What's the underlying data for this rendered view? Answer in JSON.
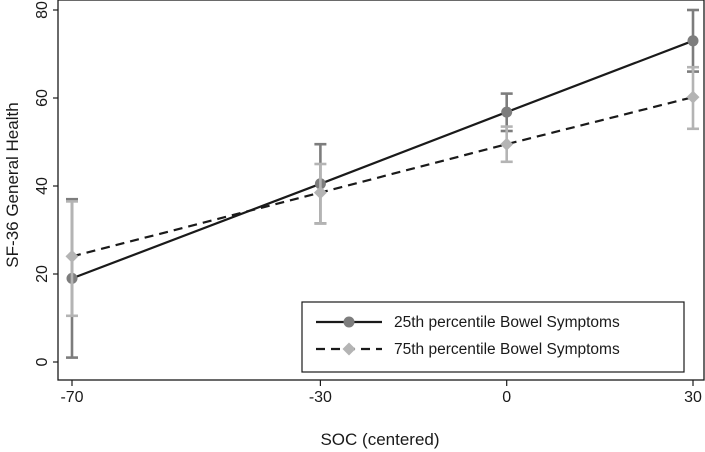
{
  "chart_data": {
    "type": "line",
    "xlabel": "SOC (centered)",
    "ylabel": "SF-36 General Health",
    "x_ticks": [
      -70,
      -30,
      0,
      30
    ],
    "y_ticks": [
      0,
      20,
      40,
      60,
      80
    ],
    "xlim": [
      -70,
      30
    ],
    "ylim": [
      0,
      80
    ],
    "legend_position": "bottom-right",
    "series": [
      {
        "name": "25th percentile Bowel Symptoms",
        "x": [
          -70,
          -30,
          0,
          30
        ],
        "values": [
          19,
          40.5,
          56.8,
          73
        ],
        "ci_low": [
          1,
          31.5,
          52.5,
          66
        ],
        "ci_high": [
          37,
          49.5,
          61,
          80
        ],
        "color": "#7d7d7d",
        "line_color": "#1a1a1a",
        "line_style": "solid",
        "marker": "circle"
      },
      {
        "name": "75th percentile Bowel Symptoms",
        "x": [
          -70,
          -30,
          0,
          30
        ],
        "values": [
          24,
          38.5,
          49.5,
          60.2
        ],
        "ci_low": [
          10.5,
          31.5,
          45.5,
          53
        ],
        "ci_high": [
          36.5,
          45,
          53.5,
          67
        ],
        "color": "#b4b4b4",
        "line_color": "#1a1a1a",
        "line_style": "dashed",
        "marker": "diamond"
      }
    ]
  }
}
